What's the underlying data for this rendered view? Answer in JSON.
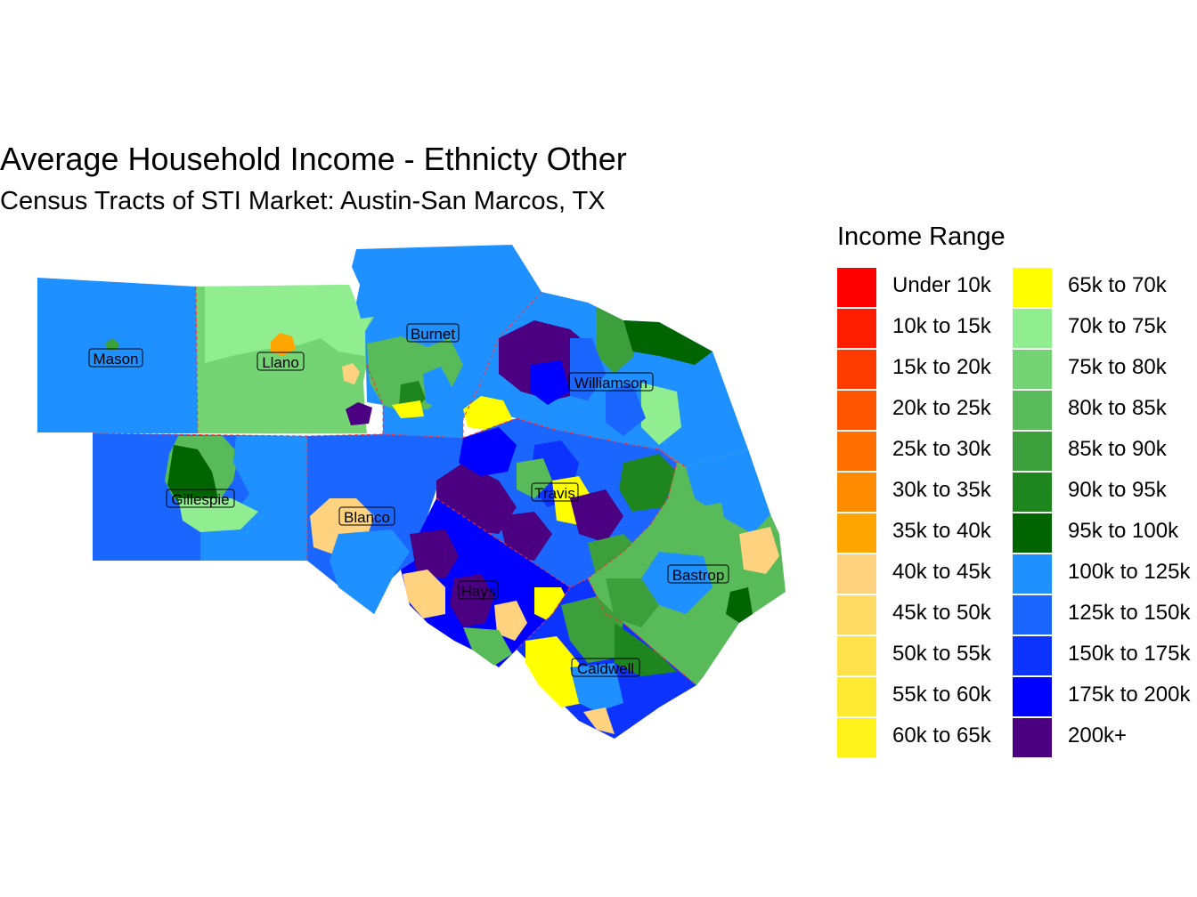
{
  "title": "Average Household Income - Ethnicty Other",
  "subtitle": "Census Tracts of STI Market: Austin-San Marcos, TX",
  "legend": {
    "title": "Income Range",
    "items": [
      {
        "label": "Under 10k",
        "color": "#FF0000"
      },
      {
        "label": "10k to 15k",
        "color": "#FF1E00"
      },
      {
        "label": "15k to 20k",
        "color": "#FF3C00"
      },
      {
        "label": "20k to 25k",
        "color": "#FF5500"
      },
      {
        "label": "25k to 30k",
        "color": "#FF6E00"
      },
      {
        "label": "30k to 35k",
        "color": "#FF8C00"
      },
      {
        "label": "35k to 40k",
        "color": "#FFA500"
      },
      {
        "label": "40k to 45k",
        "color": "#FFD27F"
      },
      {
        "label": "45k to 50k",
        "color": "#FFDB66"
      },
      {
        "label": "50k to 55k",
        "color": "#FFE24C"
      },
      {
        "label": "55k to 60k",
        "color": "#FFEA33"
      },
      {
        "label": "60k to 65k",
        "color": "#FFF21A"
      },
      {
        "label": "65k to 70k",
        "color": "#FFFF00"
      },
      {
        "label": "70k to 75k",
        "color": "#90EE90"
      },
      {
        "label": "75k to 80k",
        "color": "#74D474"
      },
      {
        "label": "80k to 85k",
        "color": "#58BA58"
      },
      {
        "label": "85k to 90k",
        "color": "#3C9F3C"
      },
      {
        "label": "90k to 95k",
        "color": "#1F851F"
      },
      {
        "label": "95k to 100k",
        "color": "#006400"
      },
      {
        "label": "100k to 125k",
        "color": "#1E90FF"
      },
      {
        "label": "125k to 150k",
        "color": "#1A66FF"
      },
      {
        "label": "150k to 175k",
        "color": "#0D33FF"
      },
      {
        "label": "175k to 200k",
        "color": "#0000FF"
      },
      {
        "label": "200k+",
        "color": "#4B0082"
      }
    ]
  },
  "counties": [
    {
      "name": "Mason"
    },
    {
      "name": "Llano"
    },
    {
      "name": "Burnet"
    },
    {
      "name": "Williamson"
    },
    {
      "name": "Gillespie"
    },
    {
      "name": "Travis"
    },
    {
      "name": "Blanco"
    },
    {
      "name": "Bastrop"
    },
    {
      "name": "Hays"
    },
    {
      "name": "Caldwell"
    }
  ],
  "colors": {
    "boundary": "#FF3030"
  }
}
